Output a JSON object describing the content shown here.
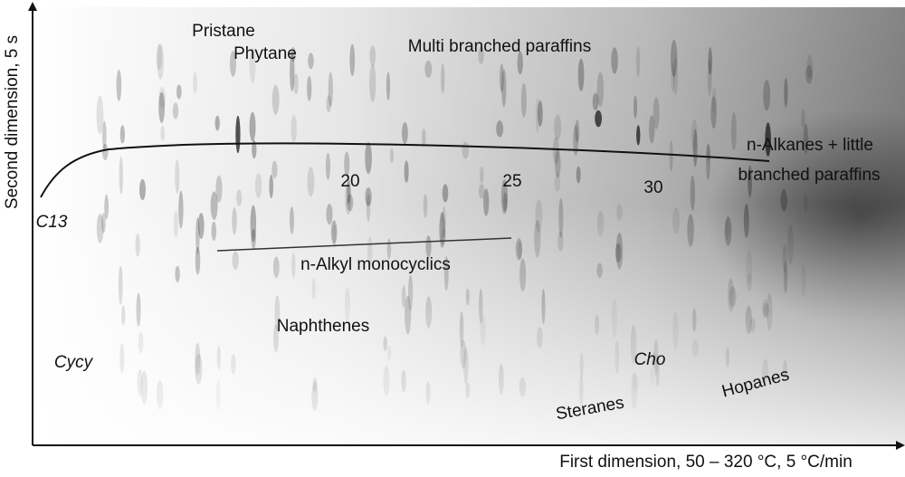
{
  "axes": {
    "x_label": "First dimension, 50 – 320 °C, 5 °C/min",
    "y_label": "Second dimension, 5 s"
  },
  "annotations": [
    "Pristane",
    "Phytane",
    "Multi branched paraffins",
    "n-Alkanes + little",
    "branched paraffins",
    "C13",
    "20",
    "25",
    "30",
    "n-Alkyl monocyclics",
    "Naphthenes",
    "Cycy",
    "Cho",
    "Steranes",
    "Hopanes"
  ]
}
